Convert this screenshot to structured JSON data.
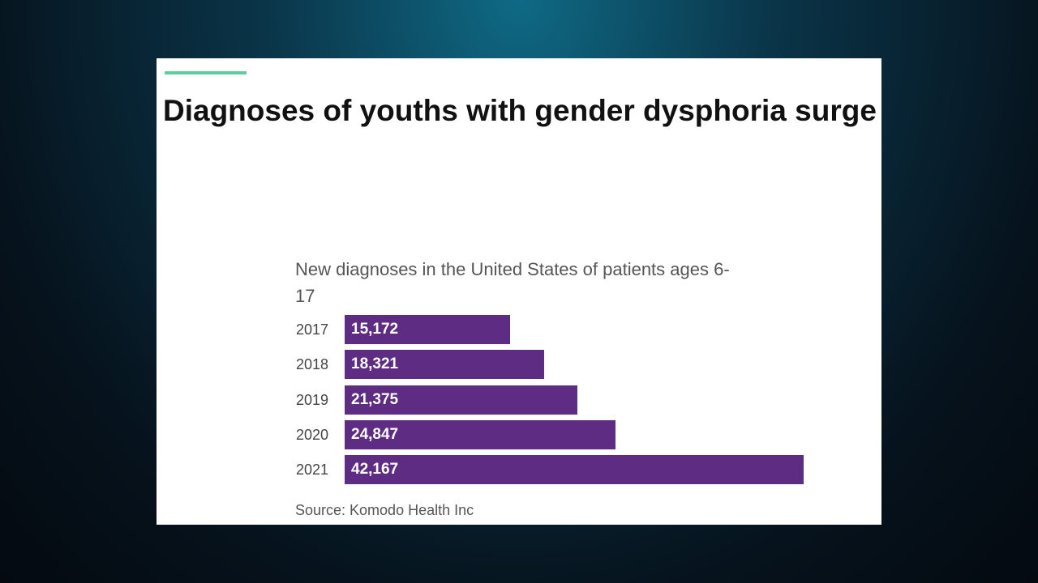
{
  "chart_data": {
    "type": "bar",
    "title": "Diagnoses of youths with gender dysphoria surge",
    "subtitle": "New diagnoses in the United States of patients ages 6-17",
    "source": "Source: Komodo Health Inc",
    "categories": [
      "2017",
      "2018",
      "2019",
      "2020",
      "2021"
    ],
    "values": [
      15172,
      18321,
      21375,
      24847,
      42167
    ],
    "value_labels": [
      "15,172",
      "18,321",
      "21,375",
      "24,847",
      "42,167"
    ],
    "color": "#5e2d83"
  }
}
